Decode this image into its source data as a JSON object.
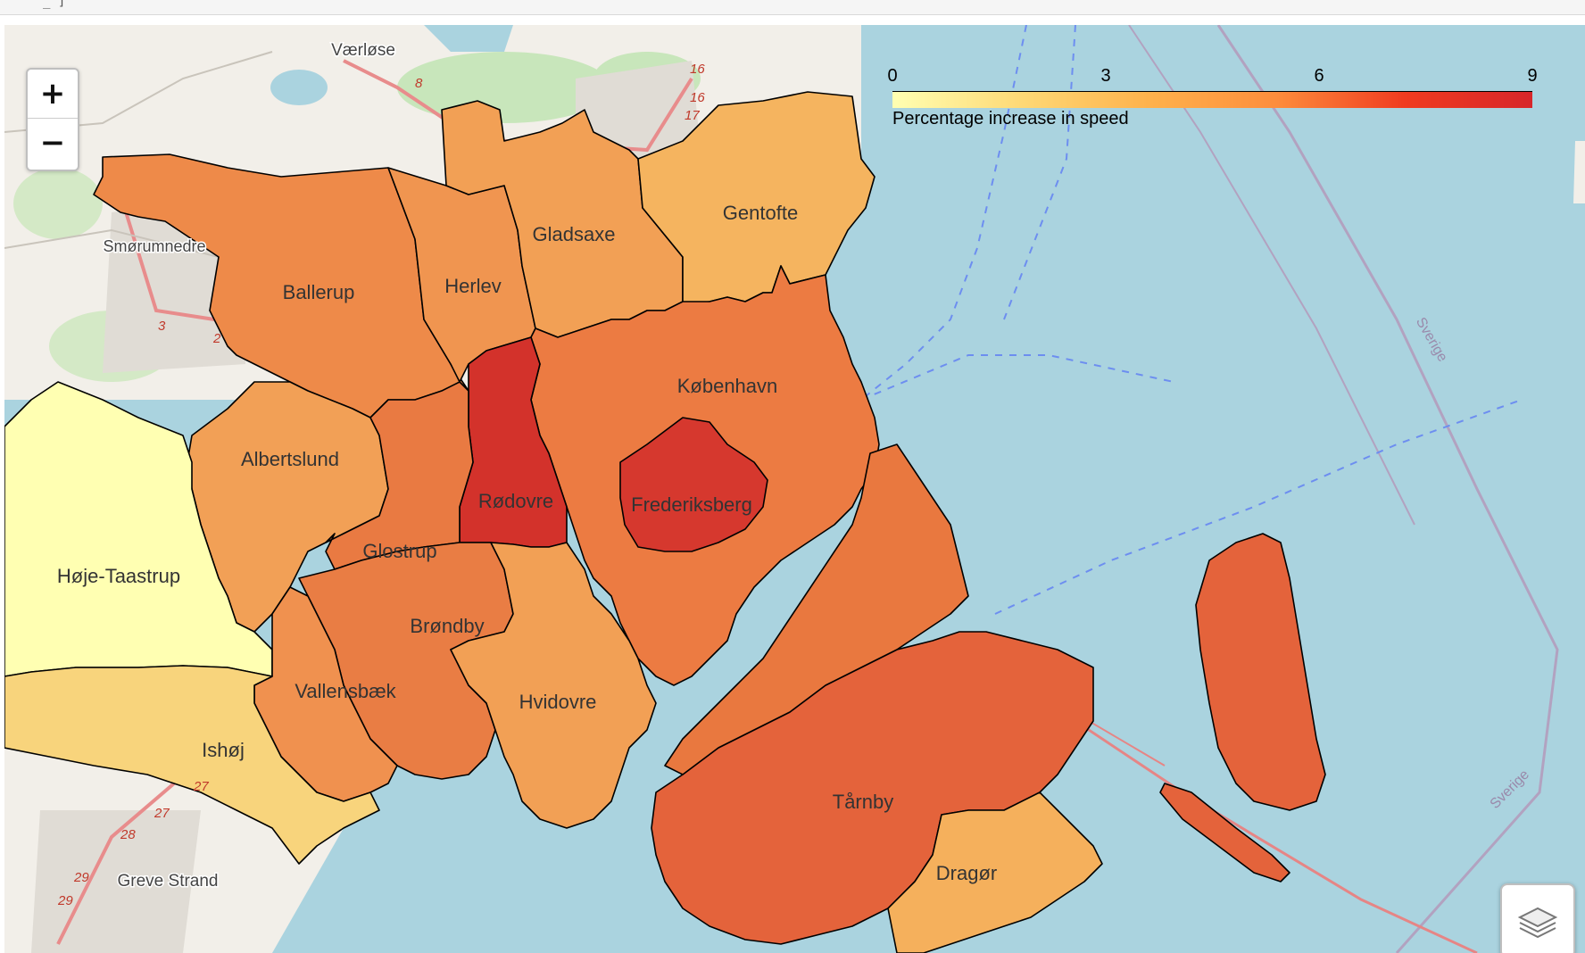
{
  "toolbar": {
    "glyph": "_ ]"
  },
  "zoom": {
    "in_label": "+",
    "out_label": "−"
  },
  "legend": {
    "ticks": [
      "0",
      "3",
      "6",
      "9"
    ],
    "caption": "Percentage increase in speed",
    "scale_min": 0,
    "scale_max": 9,
    "colors": [
      "#ffffb2",
      "#fed976",
      "#feb24c",
      "#fd8d3c",
      "#f03b20",
      "#d7262a"
    ]
  },
  "regions": [
    {
      "name": "Ballerup",
      "color": "#ee8a49"
    },
    {
      "name": "Herlev",
      "color": "#f09550"
    },
    {
      "name": "Gladsaxe",
      "color": "#f2a055"
    },
    {
      "name": "Gentofte",
      "color": "#f5b45f"
    },
    {
      "name": "København",
      "color": "#ec7b42"
    },
    {
      "name": "Frederiksberg",
      "color": "#d6382e"
    },
    {
      "name": "Rødovre",
      "color": "#d3322b"
    },
    {
      "name": "Albertslund",
      "color": "#f2a056"
    },
    {
      "name": "Glostrup",
      "color": "#e97a42"
    },
    {
      "name": "Høje-Taastrup",
      "color": "#ffffb2"
    },
    {
      "name": "Brøndby",
      "color": "#e97d44"
    },
    {
      "name": "Vallensbæk",
      "color": "#f0914f"
    },
    {
      "name": "Hvidovre",
      "color": "#f2a055"
    },
    {
      "name": "Ishøj",
      "color": "#f8d47c"
    },
    {
      "name": "Tårnby",
      "color": "#e4633b"
    },
    {
      "name": "Dragør",
      "color": "#f5b05c"
    }
  ],
  "places": [
    "Værløse",
    "Smørumnedre",
    "Greve Strand",
    "Sverige",
    "Sverige"
  ],
  "road_numbers": [
    "8",
    "16",
    "16",
    "17",
    "3",
    "2",
    "27",
    "27",
    "28",
    "29",
    "29"
  ],
  "basemap_colors": {
    "water": "#aad3df",
    "land": "#f2efe9",
    "green": "#c8e6bb",
    "road": "#e88c8c"
  }
}
